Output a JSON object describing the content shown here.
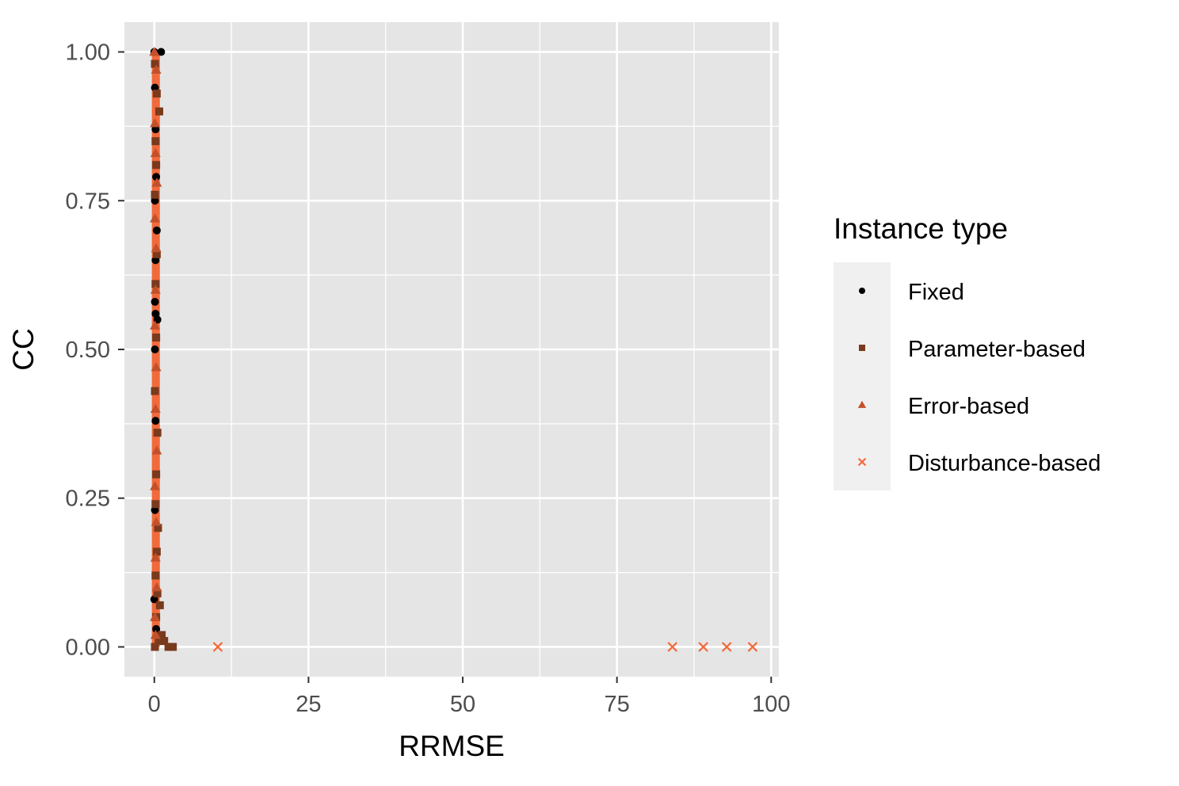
{
  "chart_data": {
    "type": "scatter",
    "xlabel": "RRMSE",
    "ylabel": "CC",
    "xlim": [
      -4.85,
      101.25
    ],
    "ylim": [
      -0.05,
      1.05
    ],
    "x_ticks": [
      0,
      25,
      50,
      75,
      100
    ],
    "x_tick_labels": [
      "0",
      "25",
      "50",
      "75",
      "100"
    ],
    "y_ticks": [
      0,
      0.25,
      0.5,
      0.75,
      1.0
    ],
    "y_tick_labels": [
      "0.00",
      "0.25",
      "0.50",
      "0.75",
      "1.00"
    ],
    "grid": true,
    "legend": {
      "title": "Instance type",
      "position": "right"
    },
    "panel_background": "#e5e5e5",
    "series": [
      {
        "name": "Fixed",
        "shape": "circle",
        "color": "#000000",
        "points": [
          [
            0.0,
            1.0
          ],
          [
            1.1,
            1.0
          ],
          [
            0.1,
            0.94
          ],
          [
            0.2,
            0.87
          ],
          [
            0.3,
            0.79
          ],
          [
            0.1,
            0.75
          ],
          [
            0.4,
            0.7
          ],
          [
            0.2,
            0.65
          ],
          [
            0.1,
            0.58
          ],
          [
            0.2,
            0.56
          ],
          [
            0.5,
            0.55
          ],
          [
            0.1,
            0.5
          ],
          [
            0.2,
            0.38
          ],
          [
            0.1,
            0.23
          ],
          [
            0.0,
            0.08
          ],
          [
            0.3,
            0.03
          ]
        ]
      },
      {
        "name": "Parameter-based",
        "shape": "square",
        "color": "#7a3a1e",
        "points": [
          [
            0.1,
            0.98
          ],
          [
            0.4,
            0.93
          ],
          [
            0.8,
            0.9
          ],
          [
            0.2,
            0.85
          ],
          [
            0.3,
            0.81
          ],
          [
            0.1,
            0.76
          ],
          [
            0.4,
            0.66
          ],
          [
            0.2,
            0.61
          ],
          [
            0.3,
            0.52
          ],
          [
            0.1,
            0.43
          ],
          [
            0.5,
            0.36
          ],
          [
            0.3,
            0.29
          ],
          [
            0.2,
            0.24
          ],
          [
            0.6,
            0.2
          ],
          [
            0.4,
            0.16
          ],
          [
            0.2,
            0.12
          ],
          [
            0.5,
            0.09
          ],
          [
            0.9,
            0.07
          ],
          [
            0.3,
            0.05
          ],
          [
            1.2,
            0.02
          ],
          [
            1.6,
            0.01
          ],
          [
            2.3,
            0.0
          ],
          [
            3.0,
            0.0
          ],
          [
            0.7,
            0.01
          ],
          [
            0.1,
            0.0
          ]
        ]
      },
      {
        "name": "Error-based",
        "shape": "triangle",
        "color": "#c2512b",
        "points": [
          [
            0.0,
            1.0
          ],
          [
            0.3,
            0.97
          ],
          [
            0.1,
            0.88
          ],
          [
            0.2,
            0.83
          ],
          [
            0.4,
            0.78
          ],
          [
            0.1,
            0.72
          ],
          [
            0.3,
            0.67
          ],
          [
            0.2,
            0.6
          ],
          [
            0.1,
            0.54
          ],
          [
            0.3,
            0.47
          ],
          [
            0.2,
            0.4
          ],
          [
            0.4,
            0.33
          ],
          [
            0.1,
            0.27
          ],
          [
            0.3,
            0.21
          ],
          [
            0.2,
            0.15
          ],
          [
            0.4,
            0.1
          ],
          [
            0.1,
            0.05
          ],
          [
            0.2,
            0.02
          ]
        ]
      },
      {
        "name": "Disturbance-based",
        "shape": "cross",
        "color": "#f26a3b",
        "points": [
          [
            10.3,
            0.0
          ],
          [
            84.0,
            0.0
          ],
          [
            89.0,
            0.0
          ],
          [
            92.8,
            0.0
          ],
          [
            97.0,
            0.0
          ]
        ]
      }
    ],
    "dense_band": {
      "note_series": "Disturbance-based",
      "x_range": [
        -0.4,
        0.9
      ],
      "y_range": [
        0.0,
        1.0
      ]
    }
  }
}
